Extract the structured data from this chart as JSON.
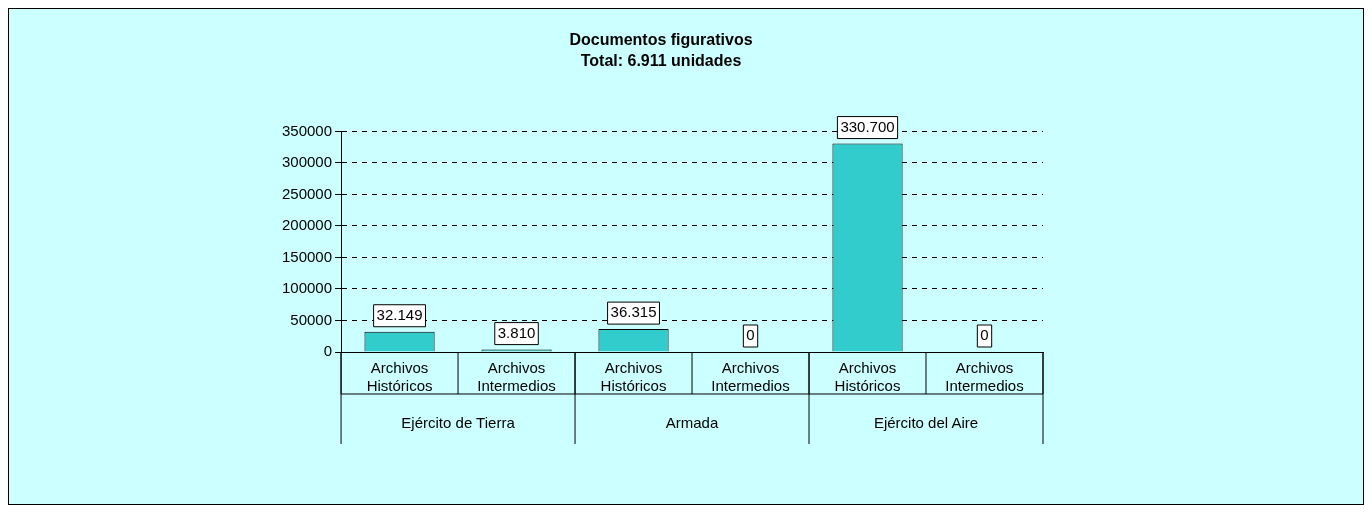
{
  "chart_data": {
    "type": "bar",
    "title": "Documentos figurativos",
    "subtitle": "Total: 6.911 unidades",
    "categories": [
      "Archivos Históricos",
      "Archivos Intermedios",
      "Archivos Históricos",
      "Archivos Intermedios",
      "Archivos Históricos",
      "Archivos Intermedios"
    ],
    "values": [
      32149,
      3810,
      36315,
      0,
      330700,
      0
    ],
    "value_labels": [
      "32.149",
      "3.810",
      "36.315",
      "0",
      "330.700",
      "0"
    ],
    "color": "#33cccc",
    "annotations": [
      "Ejército de Tierra",
      "Armada",
      "Ejército del Aire"
    ],
    "ylim": [
      0,
      350000
    ],
    "yticks": [
      0,
      50000,
      100000,
      150000,
      200000,
      250000,
      300000,
      350000
    ],
    "grid": "y",
    "legend": false
  }
}
